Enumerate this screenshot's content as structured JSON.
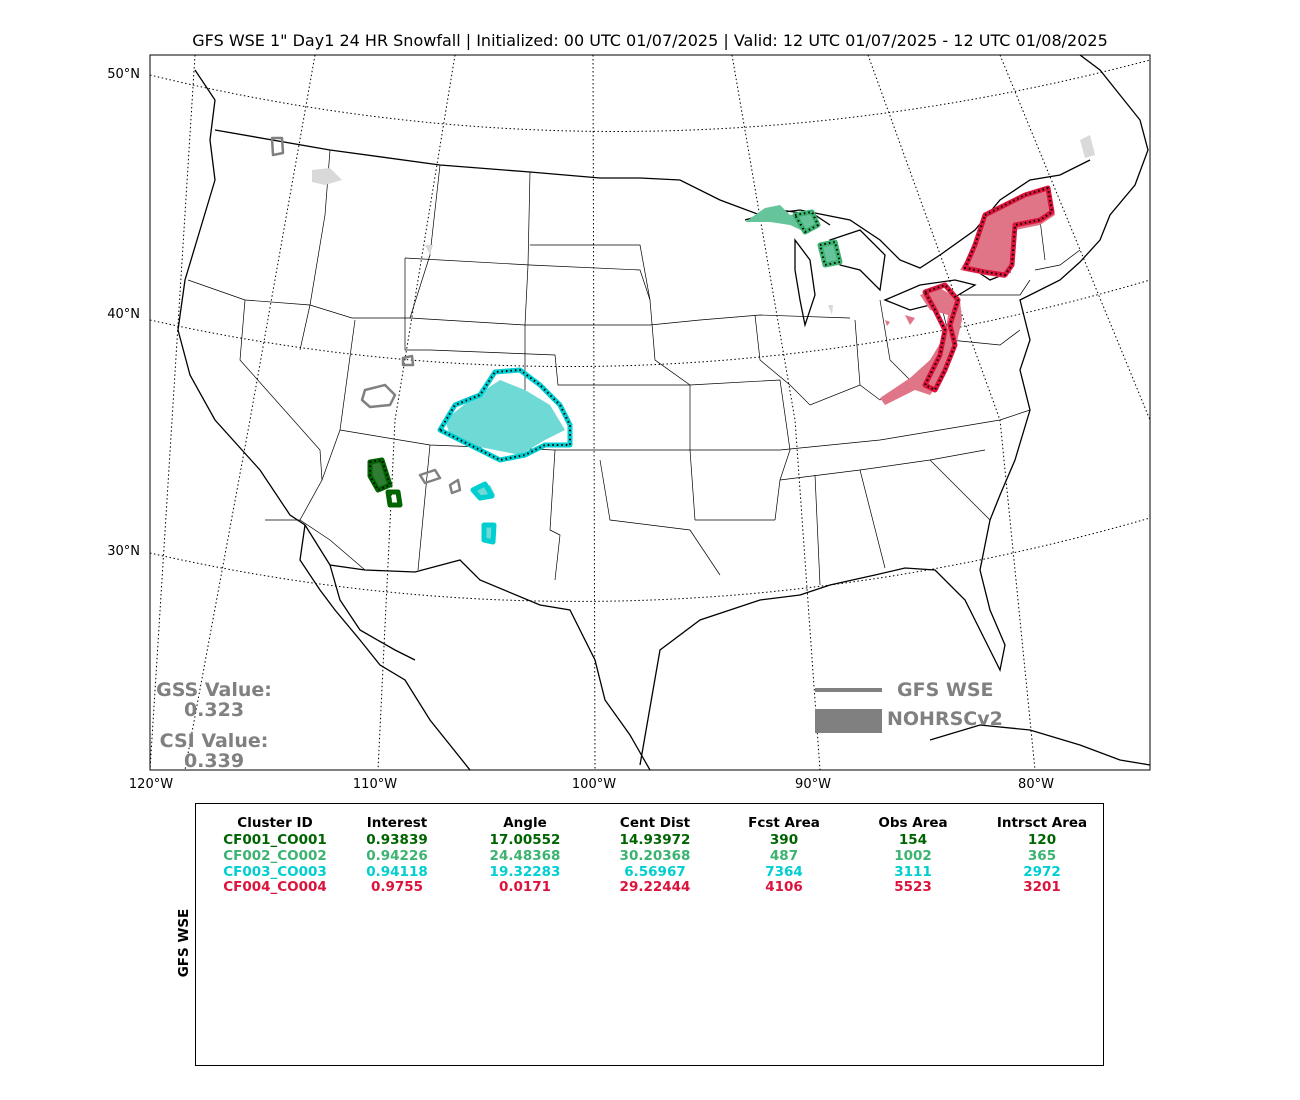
{
  "title": "GFS WSE 1\" Day1 24 HR Snowfall | Initialized: 00 UTC 01/07/2025 | Valid: 12 UTC 01/07/2025 - 12 UTC 01/08/2025",
  "lat_labels": [
    "50°N",
    "40°N",
    "30°N"
  ],
  "lon_labels": [
    "120°W",
    "110°W",
    "100°W",
    "90°W",
    "80°W"
  ],
  "stats": {
    "gss_label": "GSS Value:",
    "gss_value": "0.323",
    "csi_label": "CSI Value:",
    "csi_value": "0.339"
  },
  "legend": {
    "line_label": "GFS WSE",
    "fill_label": "NOHRSCv2",
    "color": "#808080"
  },
  "table": {
    "side_label": "GFS WSE",
    "headers": [
      "Cluster ID",
      "Interest",
      "Angle",
      "Cent Dist",
      "Fcst Area",
      "Obs Area",
      "Intrsct Area"
    ],
    "rows": [
      {
        "color": "#006400",
        "cells": [
          "CF001_CO001",
          "0.93839",
          "17.00552",
          "14.93972",
          "390",
          "154",
          "120"
        ]
      },
      {
        "color": "#3cb371",
        "cells": [
          "CF002_CO002",
          "0.94226",
          "24.48368",
          "30.20368",
          "487",
          "1002",
          "365"
        ]
      },
      {
        "color": "#00ced1",
        "cells": [
          "CF003_CO003",
          "0.94118",
          "19.32283",
          "6.56967",
          "7364",
          "3111",
          "2972"
        ]
      },
      {
        "color": "#dc143c",
        "cells": [
          "CF004_CO004",
          "0.9755",
          "0.0171",
          "29.22444",
          "4106",
          "5523",
          "3201"
        ]
      }
    ]
  },
  "clusters": {
    "CF001": {
      "color": "#006400",
      "fill": "#006400"
    },
    "CF002": {
      "color": "#3cb371",
      "fill": "#66c49a"
    },
    "CF003": {
      "color": "#00ced1",
      "fill": "#6fd9d6"
    },
    "CF004": {
      "color": "#dc143c",
      "fill": "#e07588"
    },
    "unmatched_line": "#808080",
    "unmatched_fill": "#d9d9d9"
  }
}
